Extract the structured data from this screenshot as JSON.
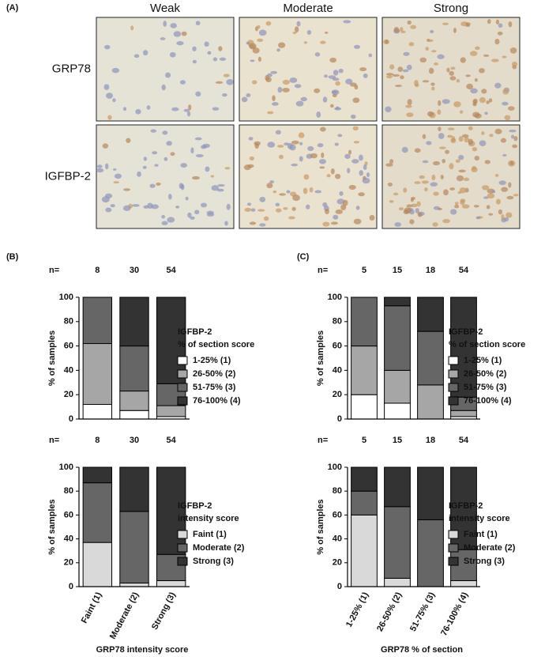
{
  "panel_a": {
    "label": "(A)",
    "columns": [
      "Weak",
      "Moderate",
      "Strong"
    ],
    "rows": [
      "GRP78",
      "IGFBP-2"
    ]
  },
  "chart_data": [
    {
      "type": "stacked-bar",
      "panel": "(B)",
      "n_label": "n=",
      "n": [
        8,
        30,
        54
      ],
      "categories": [
        null,
        null,
        null
      ],
      "ylabel": "% of samples",
      "ylim": [
        0,
        100
      ],
      "yticks": [
        0,
        20,
        40,
        60,
        80,
        100
      ],
      "legend_title": [
        "IGFBP-2",
        "% of section score"
      ],
      "series": [
        {
          "name": "1-25% (1)",
          "color": "#ffffff",
          "values": [
            12,
            7,
            2
          ]
        },
        {
          "name": "26-50% (2)",
          "color": "#a6a6a6",
          "values": [
            50,
            16,
            9
          ]
        },
        {
          "name": "51-75% (3)",
          "color": "#666666",
          "values": [
            38,
            37,
            18
          ]
        },
        {
          "name": "76-100% (4)",
          "color": "#333333",
          "values": [
            0,
            40,
            71
          ]
        }
      ]
    },
    {
      "type": "stacked-bar",
      "n_label": "n=",
      "n": [
        8,
        30,
        54
      ],
      "categories": [
        "Faint (1)",
        "Moderate (2)",
        "Strong (3)"
      ],
      "xlabel": "GRP78 intensity score",
      "ylabel": "% of samples",
      "ylim": [
        0,
        100
      ],
      "yticks": [
        0,
        20,
        40,
        60,
        80,
        100
      ],
      "legend_title": [
        "IGFBP-2",
        "intensity score"
      ],
      "series": [
        {
          "name": "Faint (1)",
          "color": "#d9d9d9",
          "values": [
            37,
            3,
            5
          ]
        },
        {
          "name": "Moderate (2)",
          "color": "#666666",
          "values": [
            50,
            60,
            22
          ]
        },
        {
          "name": "Strong (3)",
          "color": "#333333",
          "values": [
            13,
            37,
            73
          ]
        }
      ]
    },
    {
      "type": "stacked-bar",
      "panel": "(C)",
      "n_label": "n=",
      "n": [
        5,
        15,
        18,
        54
      ],
      "categories": [
        null,
        null,
        null,
        null
      ],
      "ylabel": "% of samples",
      "ylim": [
        0,
        100
      ],
      "yticks": [
        0,
        20,
        40,
        60,
        80,
        100
      ],
      "legend_title": [
        "IGFBP-2",
        "% of section score"
      ],
      "series": [
        {
          "name": "1-25% (1)",
          "color": "#ffffff",
          "values": [
            20,
            13,
            0,
            2
          ]
        },
        {
          "name": "26-50% (2)",
          "color": "#a6a6a6",
          "values": [
            40,
            27,
            28,
            5
          ]
        },
        {
          "name": "51-75% (3)",
          "color": "#666666",
          "values": [
            40,
            53,
            44,
            11
          ]
        },
        {
          "name": "76-100% (4)",
          "color": "#333333",
          "values": [
            0,
            7,
            28,
            82
          ]
        }
      ]
    },
    {
      "type": "stacked-bar",
      "n_label": "n=",
      "n": [
        5,
        15,
        18,
        54
      ],
      "categories": [
        "1-25% (1)",
        "26-50% (2)",
        "51-75% (3)",
        "76-100% (4)"
      ],
      "xlabel": "GRP78 % of section",
      "ylabel": "% of samples",
      "ylim": [
        0,
        100
      ],
      "yticks": [
        0,
        20,
        40,
        60,
        80,
        100
      ],
      "legend_title": [
        "IGFBP-2",
        "intensity score"
      ],
      "series": [
        {
          "name": "Faint (1)",
          "color": "#d9d9d9",
          "values": [
            60,
            7,
            0,
            5
          ]
        },
        {
          "name": "Moderate (2)",
          "color": "#666666",
          "values": [
            20,
            60,
            56,
            26
          ]
        },
        {
          "name": "Strong (3)",
          "color": "#333333",
          "values": [
            20,
            33,
            44,
            69
          ]
        }
      ]
    }
  ]
}
